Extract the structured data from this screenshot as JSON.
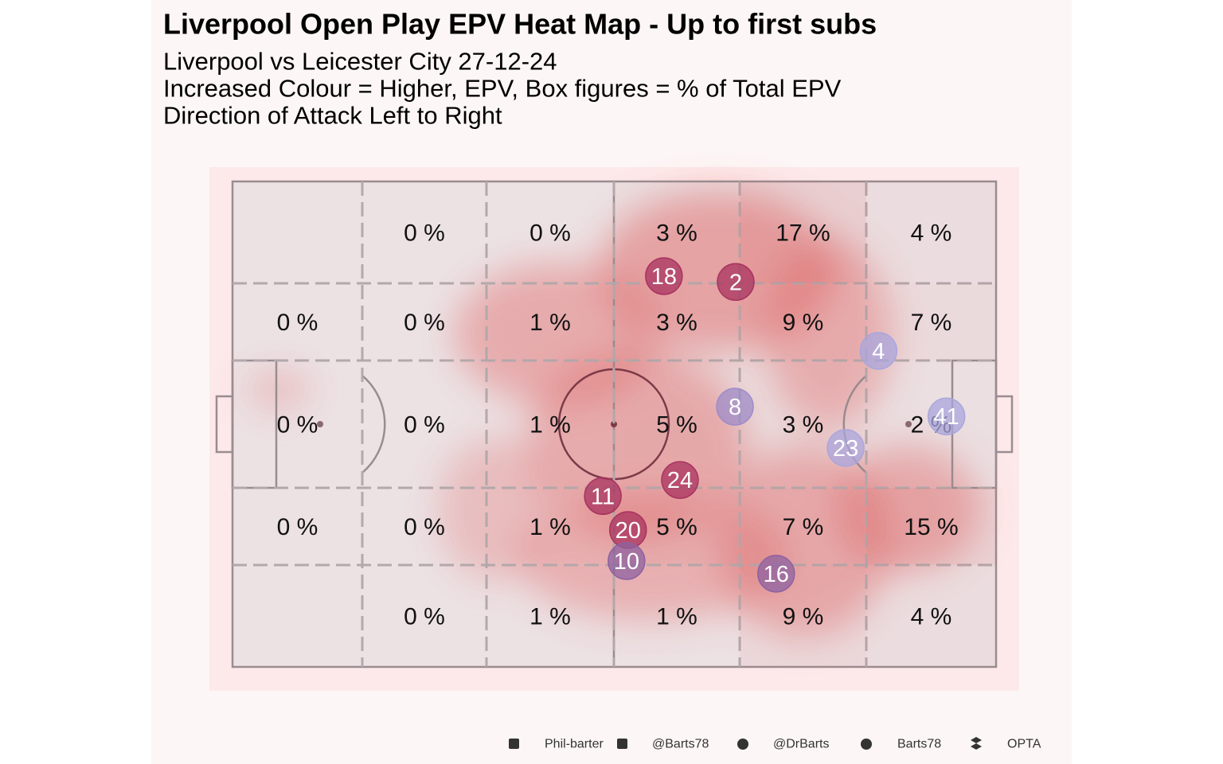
{
  "chart_data": {
    "type": "pitch",
    "title": "Liverpool Open Play EPV Heat Map - Up to first subs",
    "subtitle": [
      "Liverpool vs Leicester City 27-12-24",
      "Increased Colour = Higher, EPV, Box figures = % of Total EPV",
      "Direction of Attack Left to Right"
    ],
    "zones": {
      "values": [
        [
          null,
          0,
          0,
          3,
          17,
          4
        ],
        [
          0,
          0,
          1,
          3,
          9,
          7
        ],
        [
          0,
          0,
          1,
          5,
          3,
          2
        ],
        [
          0,
          0,
          1,
          5,
          7,
          15
        ],
        [
          null,
          0,
          1,
          1,
          9,
          4
        ]
      ],
      "value_labels": [
        [
          null,
          "0 %",
          "0 %",
          "3 %",
          "17 %",
          "4 %"
        ],
        [
          "0 %",
          "0 %",
          "1 %",
          "3 %",
          "9 %",
          "7 %"
        ],
        [
          "0 %",
          "0 %",
          "1 %",
          "5 %",
          "3 %",
          "2 %"
        ],
        [
          "0 %",
          "0 %",
          "1 %",
          "5 %",
          "7 %",
          "15 %"
        ],
        [
          null,
          "0 %",
          "1 %",
          "1 %",
          "9 %",
          "4 %"
        ]
      ]
    },
    "xlim": [
      0,
      100
    ],
    "ylim": [
      0,
      100
    ],
    "players": [
      {
        "label": "18",
        "x": 56.5,
        "y": 19.5,
        "color": "#a8335f"
      },
      {
        "label": "2",
        "x": 65.9,
        "y": 20.7,
        "color": "#a8335f"
      },
      {
        "label": "4",
        "x": 84.6,
        "y": 34.9,
        "color": "#aaa6dc"
      },
      {
        "label": "8",
        "x": 65.8,
        "y": 46.4,
        "color": "#9d8cc8"
      },
      {
        "label": "41",
        "x": 93.5,
        "y": 48.4,
        "color": "#aaa6dc"
      },
      {
        "label": "23",
        "x": 80.3,
        "y": 54.9,
        "color": "#aaa6dc"
      },
      {
        "label": "24",
        "x": 58.6,
        "y": 61.5,
        "color": "#a8335f"
      },
      {
        "label": "11",
        "x": 48.5,
        "y": 64.8,
        "color": "#a8335f"
      },
      {
        "label": "20",
        "x": 51.8,
        "y": 71.8,
        "color": "#a8335f"
      },
      {
        "label": "10",
        "x": 51.6,
        "y": 78.2,
        "color": "#8d62a0"
      },
      {
        "label": "16",
        "x": 71.2,
        "y": 80.8,
        "color": "#8d62a0"
      }
    ],
    "footer": [
      "Phil-barter",
      "@Barts78",
      "@DrBarts",
      "Barts78",
      "OPTA"
    ]
  }
}
